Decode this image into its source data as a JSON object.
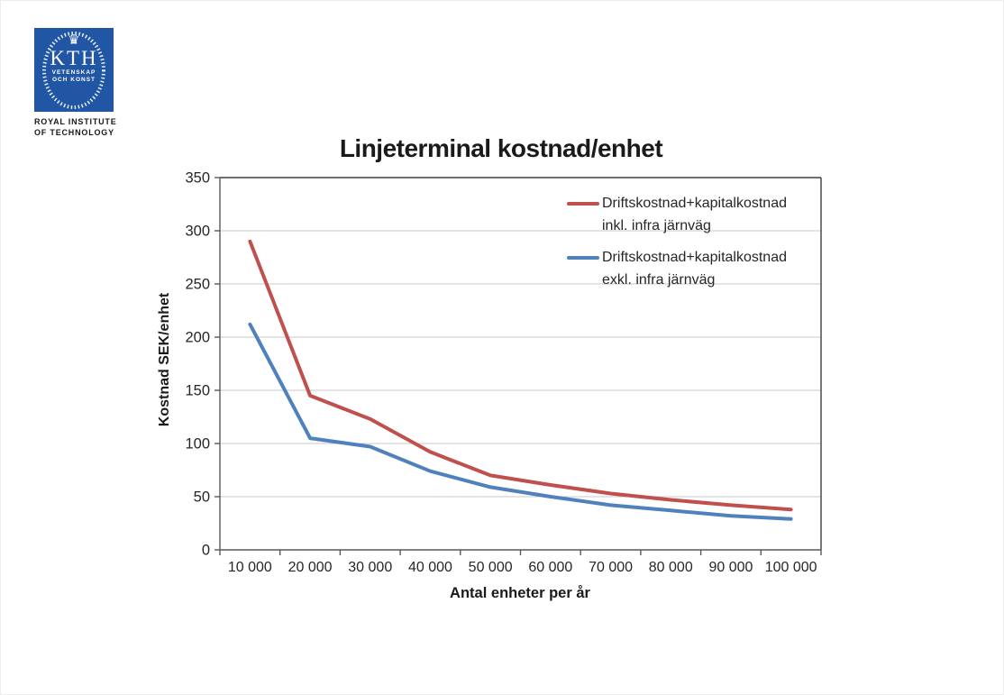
{
  "logo": {
    "kth_text": "KTH",
    "motto_line1": "VETENSKAP",
    "motto_line2": "OCH KONST",
    "caption_line1": "ROYAL INSTITUTE",
    "caption_line2": "OF TECHNOLOGY",
    "brand_color": "#2056A4"
  },
  "chart_data": {
    "type": "line",
    "title": "Linjeterminal kostnad/enhet",
    "xlabel": "Antal enheter per år",
    "ylabel": "Kostnad SEK/enhet",
    "categories": [
      "10 000",
      "20 000",
      "30 000",
      "40 000",
      "50 000",
      "60 000",
      "70 000",
      "80 000",
      "90 000",
      "100 000"
    ],
    "series": [
      {
        "name": "Driftskostnad+kapitalkostnad inkl. infra järnväg",
        "legend_lines": [
          "Driftskostnad+kapitalkostnad",
          "inkl. infra järnväg"
        ],
        "color": "#C0504D",
        "values": [
          290,
          145,
          123,
          92,
          70,
          61,
          53,
          47,
          42,
          38
        ]
      },
      {
        "name": "Driftskostnad+kapitalkostnad exkl. infra järnväg",
        "legend_lines": [
          "Driftskostnad+kapitalkostnad",
          "exkl. infra järnväg"
        ],
        "color": "#4F81BD",
        "values": [
          212,
          105,
          97,
          74,
          59,
          50,
          42,
          37,
          32,
          29
        ]
      }
    ],
    "ylim": [
      0,
      350
    ],
    "yticks": [
      0,
      50,
      100,
      150,
      200,
      250,
      300,
      350
    ],
    "grid": "horizontal",
    "legend_position": "top-right-inside",
    "grid_color": "#C9C9C9",
    "axis_color": "#595959",
    "tick_label_color": "#262626"
  }
}
